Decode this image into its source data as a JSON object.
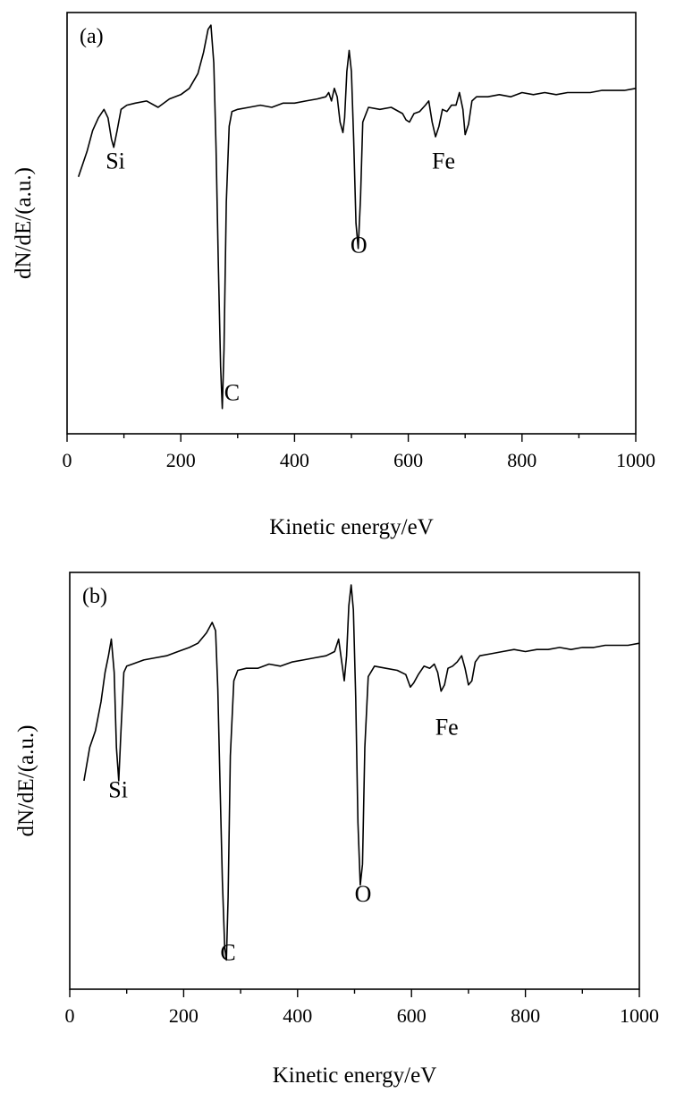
{
  "chart_data": [
    {
      "type": "line",
      "panel_label": "(a)",
      "xlabel": "Kinetic energy/eV",
      "ylabel": "dN/dE/(a.u.)",
      "xlim": [
        0,
        1000
      ],
      "ylim": [
        0,
        1
      ],
      "xticks": [
        "0",
        "200",
        "400",
        "600",
        "800",
        "1000"
      ],
      "yticks_shown": false,
      "grid": false,
      "annotations": [
        {
          "text": "Si",
          "x": 85,
          "y": 0.63
        },
        {
          "text": "C",
          "x": 290,
          "y": 0.08
        },
        {
          "text": "O",
          "x": 513,
          "y": 0.43
        },
        {
          "text": "Fe",
          "x": 662,
          "y": 0.63
        }
      ],
      "series": [
        {
          "x": [
            20,
            35,
            45,
            55,
            65,
            72,
            78,
            82,
            88,
            95,
            105,
            120,
            140,
            160,
            180,
            200,
            215,
            230,
            240,
            248,
            253,
            258,
            262,
            266,
            270,
            273,
            276,
            280,
            285,
            290,
            300,
            320,
            340,
            360,
            380,
            400,
            420,
            440,
            455,
            460,
            465,
            470,
            475,
            480,
            485,
            488,
            492,
            496,
            500,
            504,
            508,
            512,
            516,
            520,
            530,
            550,
            570,
            590,
            596,
            602,
            610,
            620,
            630,
            636,
            642,
            648,
            654,
            660,
            668,
            676,
            684,
            690,
            696,
            700,
            706,
            712,
            720,
            740,
            760,
            780,
            800,
            820,
            840,
            860,
            880,
            900,
            920,
            940,
            960,
            980,
            1000
          ],
          "y": [
            0.61,
            0.67,
            0.72,
            0.75,
            0.77,
            0.75,
            0.7,
            0.68,
            0.72,
            0.77,
            0.78,
            0.785,
            0.79,
            0.775,
            0.795,
            0.805,
            0.82,
            0.855,
            0.905,
            0.96,
            0.97,
            0.88,
            0.68,
            0.4,
            0.16,
            0.06,
            0.2,
            0.55,
            0.73,
            0.765,
            0.77,
            0.775,
            0.78,
            0.775,
            0.785,
            0.785,
            0.79,
            0.795,
            0.8,
            0.81,
            0.79,
            0.82,
            0.8,
            0.74,
            0.715,
            0.75,
            0.86,
            0.91,
            0.86,
            0.7,
            0.5,
            0.44,
            0.56,
            0.74,
            0.775,
            0.77,
            0.775,
            0.76,
            0.745,
            0.74,
            0.76,
            0.765,
            0.78,
            0.79,
            0.74,
            0.705,
            0.73,
            0.77,
            0.765,
            0.78,
            0.78,
            0.81,
            0.77,
            0.71,
            0.735,
            0.79,
            0.8,
            0.8,
            0.805,
            0.8,
            0.81,
            0.805,
            0.81,
            0.805,
            0.81,
            0.81,
            0.81,
            0.815,
            0.815,
            0.815,
            0.82
          ]
        }
      ]
    },
    {
      "type": "line",
      "panel_label": "(b)",
      "xlabel": "Kinetic energy/eV",
      "ylabel": "dN/dE/(a.u.)",
      "xlim": [
        0,
        1000
      ],
      "ylim": [
        0,
        1
      ],
      "xticks": [
        "0",
        "200",
        "400",
        "600",
        "800",
        "1000"
      ],
      "yticks_shown": false,
      "grid": false,
      "annotations": [
        {
          "text": "Si",
          "x": 85,
          "y": 0.46
        },
        {
          "text": "C",
          "x": 278,
          "y": 0.07
        },
        {
          "text": "O",
          "x": 515,
          "y": 0.21
        },
        {
          "text": "Fe",
          "x": 662,
          "y": 0.61
        }
      ],
      "series": [
        {
          "x": [
            25,
            35,
            45,
            55,
            62,
            68,
            73,
            78,
            82,
            86,
            90,
            95,
            100,
            110,
            130,
            150,
            170,
            190,
            210,
            225,
            240,
            250,
            256,
            260,
            264,
            268,
            272,
            275,
            278,
            282,
            288,
            295,
            310,
            330,
            350,
            370,
            390,
            410,
            430,
            450,
            465,
            472,
            478,
            482,
            486,
            490,
            494,
            498,
            502,
            506,
            510,
            514,
            518,
            524,
            535,
            555,
            575,
            590,
            598,
            604,
            612,
            622,
            632,
            640,
            646,
            652,
            658,
            664,
            672,
            680,
            688,
            694,
            700,
            706,
            712,
            720,
            740,
            760,
            780,
            800,
            820,
            840,
            860,
            880,
            900,
            920,
            940,
            960,
            980,
            1000
          ],
          "y": [
            0.5,
            0.58,
            0.62,
            0.69,
            0.76,
            0.8,
            0.84,
            0.76,
            0.58,
            0.5,
            0.62,
            0.76,
            0.775,
            0.78,
            0.79,
            0.795,
            0.8,
            0.81,
            0.82,
            0.83,
            0.855,
            0.88,
            0.86,
            0.72,
            0.48,
            0.26,
            0.1,
            0.07,
            0.22,
            0.56,
            0.74,
            0.765,
            0.77,
            0.77,
            0.78,
            0.775,
            0.785,
            0.79,
            0.795,
            0.8,
            0.81,
            0.84,
            0.78,
            0.74,
            0.8,
            0.92,
            0.97,
            0.91,
            0.7,
            0.4,
            0.25,
            0.3,
            0.58,
            0.75,
            0.775,
            0.77,
            0.765,
            0.755,
            0.725,
            0.735,
            0.755,
            0.775,
            0.77,
            0.78,
            0.76,
            0.715,
            0.73,
            0.77,
            0.775,
            0.785,
            0.8,
            0.77,
            0.73,
            0.74,
            0.785,
            0.8,
            0.805,
            0.81,
            0.815,
            0.81,
            0.815,
            0.815,
            0.82,
            0.815,
            0.82,
            0.82,
            0.825,
            0.825,
            0.825,
            0.83
          ]
        }
      ]
    }
  ]
}
